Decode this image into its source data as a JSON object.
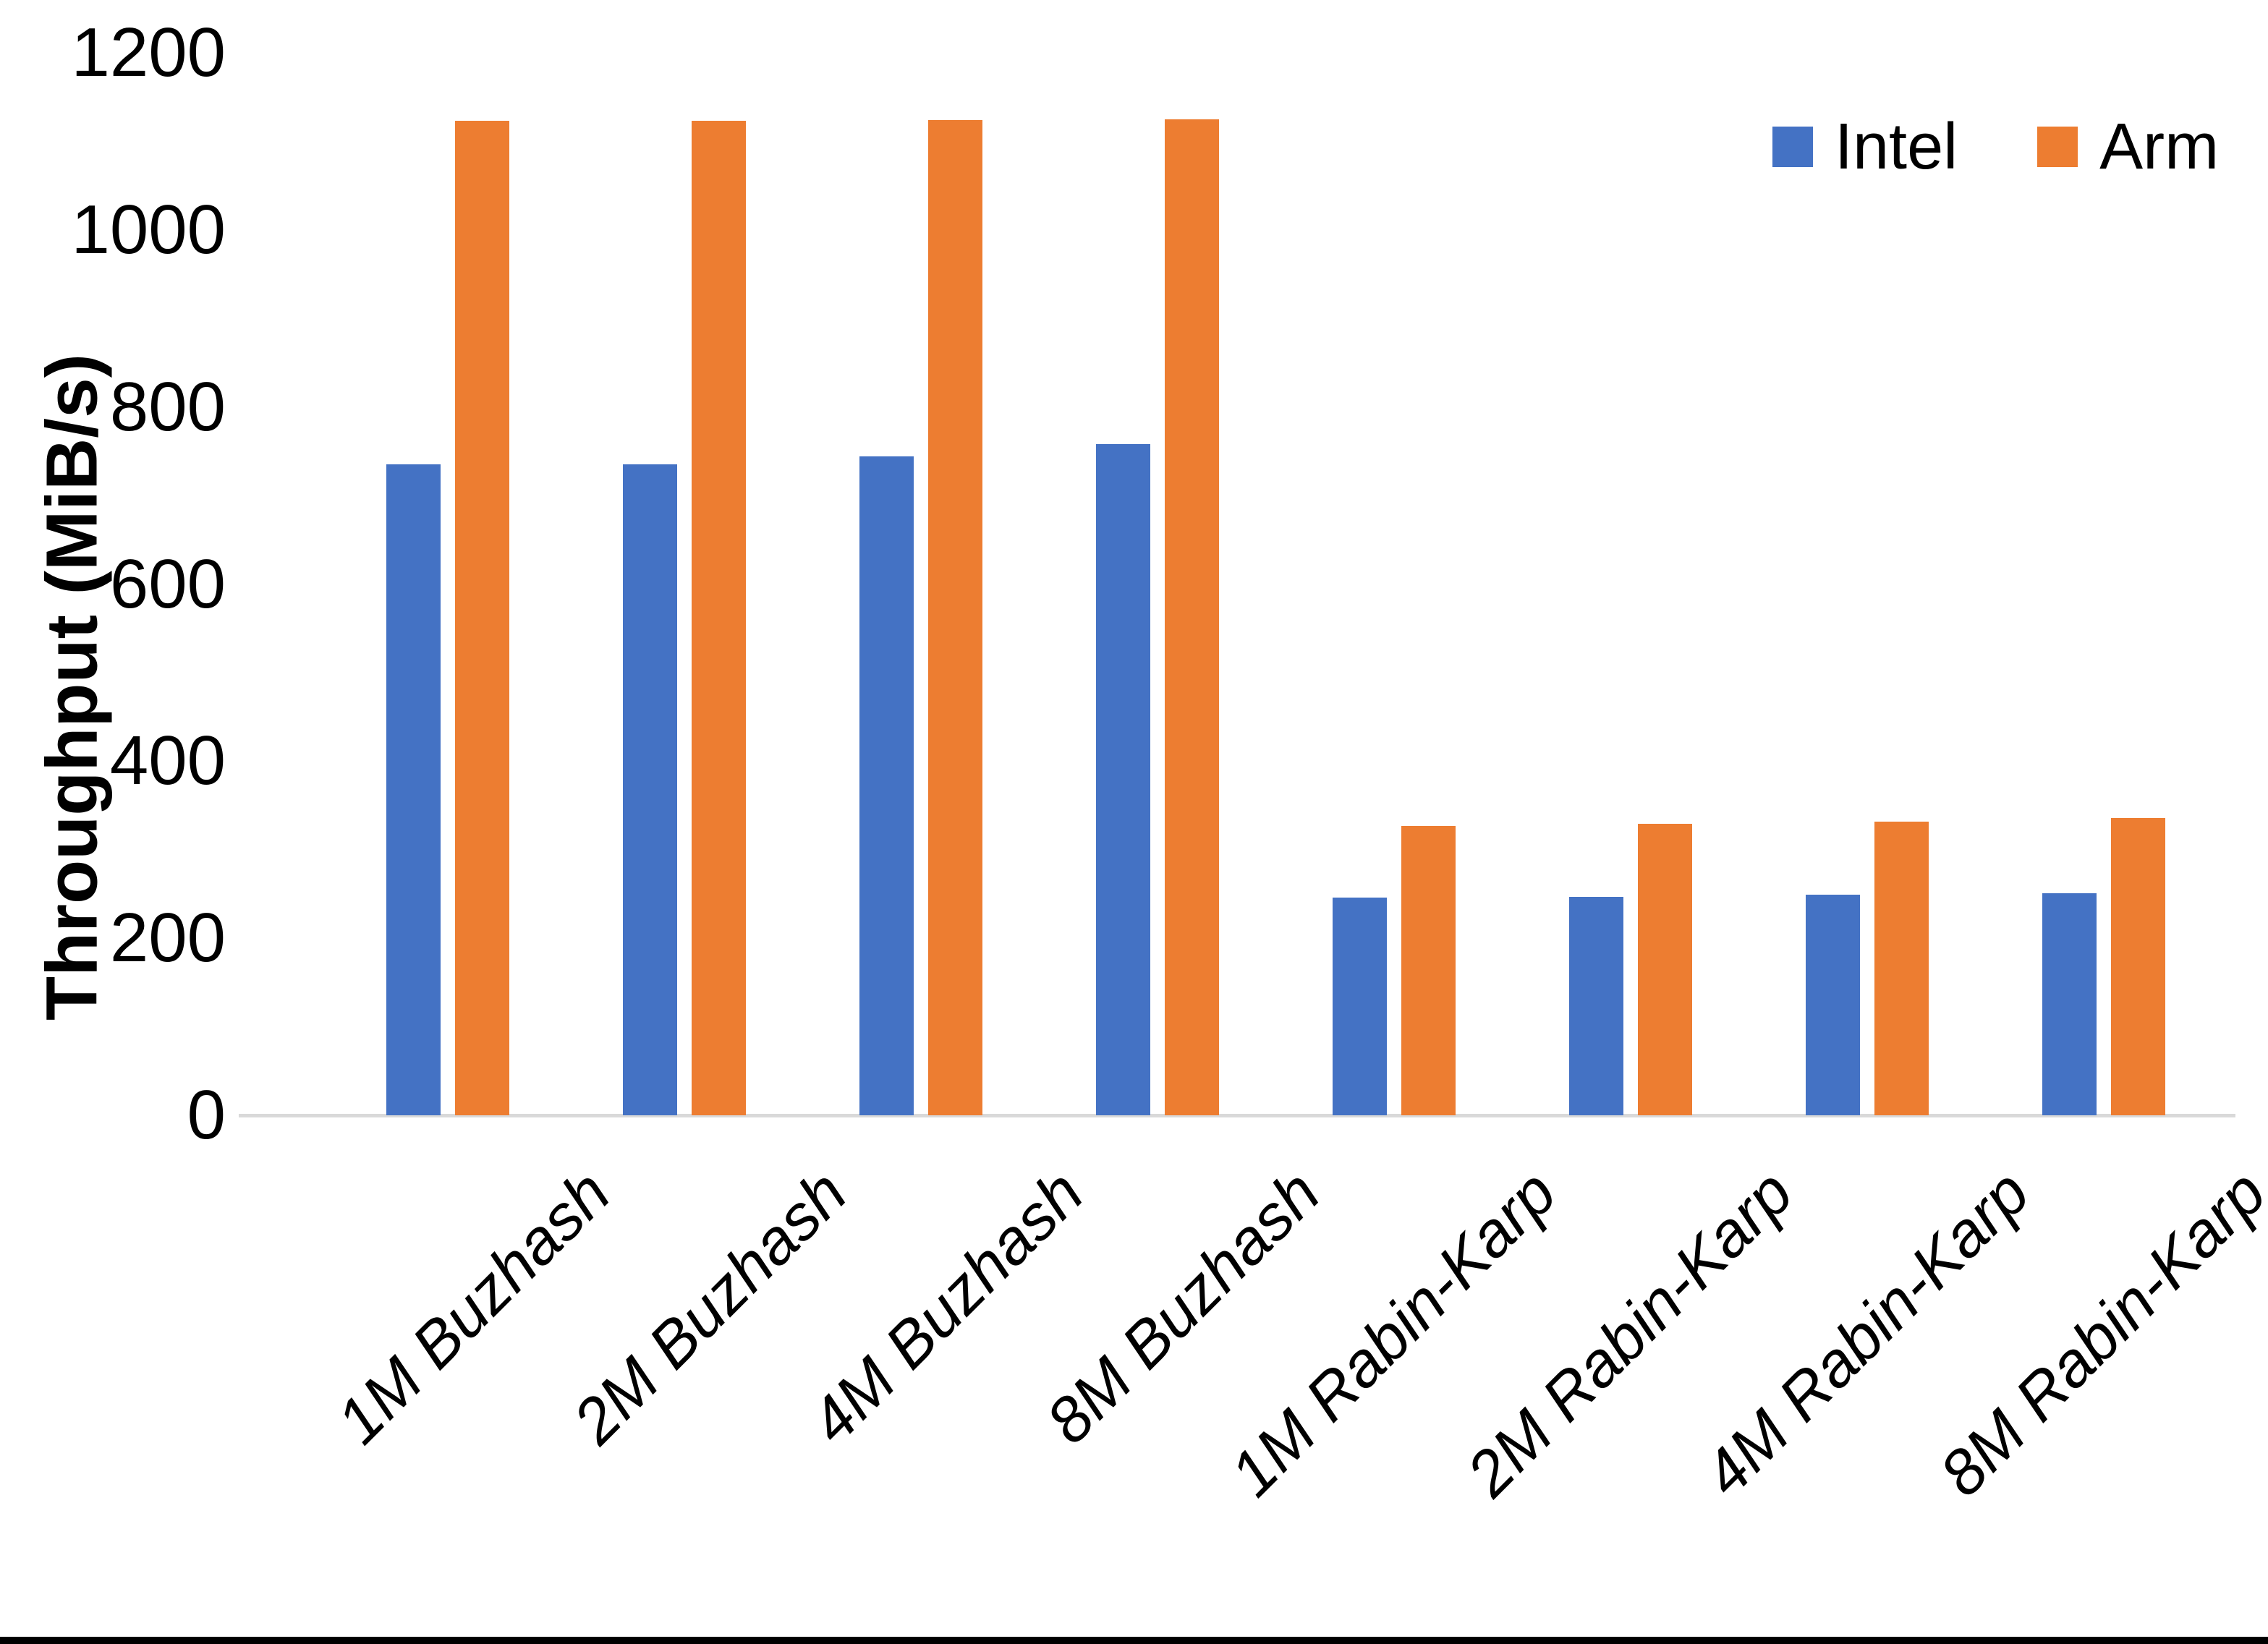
{
  "chart_data": {
    "type": "bar",
    "title": "",
    "categories": [
      "1M Buzhash",
      "2M Buzhash",
      "4M Buzhash",
      "8M Buzhash",
      "1M Rabin-Karp",
      "2M Rabin-Karp",
      "4M Rabin-Karp",
      "8M Rabin-Karp"
    ],
    "series": [
      {
        "name": "Intel",
        "color": "#4472C4",
        "values": [
          735,
          735,
          744,
          758,
          246,
          247,
          249,
          251
        ]
      },
      {
        "name": "Arm",
        "color": "#ED7D31",
        "values": [
          1123,
          1123,
          1124,
          1125,
          327,
          329,
          332,
          336
        ]
      }
    ],
    "xlabel": "",
    "ylabel": "Throughput (MiB/s)",
    "ylim": [
      0,
      1200
    ],
    "yticks": [
      0,
      200,
      400,
      600,
      800,
      1000,
      1200
    ],
    "grid": false,
    "legend_position": "top-right",
    "axis_line_color": "#D9D9D9",
    "text_color": "#000000"
  }
}
